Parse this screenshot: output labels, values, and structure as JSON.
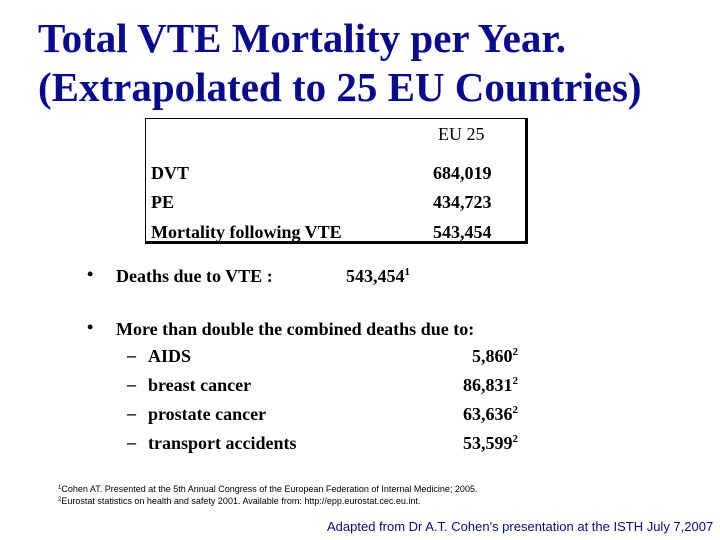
{
  "title": {
    "line1": "Total VTE Mortality per Year.",
    "line2": "(Extrapolated to 25 EU Countries)"
  },
  "table": {
    "column_header": "EU 25",
    "rows": [
      {
        "label": "DVT",
        "value": "684,019"
      },
      {
        "label": "PE",
        "value": "434,723"
      },
      {
        "label": "Mortality following VTE",
        "value": "543,454"
      }
    ]
  },
  "bullets": {
    "bullet_symbol": "•",
    "deaths": {
      "label": "Deaths due to VTE :",
      "value": "543,454",
      "ref": "1"
    },
    "comparison": {
      "label": "More than double the combined deaths due to:",
      "dash": "–",
      "items": [
        {
          "label": "AIDS",
          "value": "5,860",
          "ref": "2"
        },
        {
          "label": "breast cancer",
          "value": "86,831",
          "ref": "2"
        },
        {
          "label": "prostate cancer",
          "value": "63,636",
          "ref": "2"
        },
        {
          "label": "transport accidents",
          "value": "53,599",
          "ref": "2"
        }
      ]
    }
  },
  "footnotes": [
    {
      "ref": "1",
      "text": "Cohen AT. Presented at the 5th Annual Congress of the European Federation of Internal Medicine; 2005."
    },
    {
      "ref": "2",
      "text": "Eurostat statistics on health and safety 2001. Available from: http://epp.eurostat.cec.eu.int."
    }
  ],
  "credit": "Adapted from Dr A.T. Cohen's presentation at the ISTH July 7,2007",
  "colors": {
    "title": "#0a0a8c",
    "text": "#000000",
    "background": "#ffffff"
  }
}
